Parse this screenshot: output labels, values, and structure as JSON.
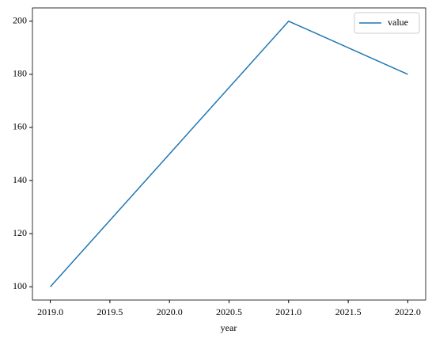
{
  "chart_data": {
    "type": "line",
    "x": [
      2019,
      2020,
      2021,
      2022
    ],
    "series": [
      {
        "name": "value",
        "color": "#1f77b4",
        "values": [
          100,
          150,
          200,
          180
        ]
      }
    ],
    "xlabel": "year",
    "xlim": [
      2018.85,
      2022.15
    ],
    "xticks": [
      {
        "value": 2019,
        "label": "2019.0"
      },
      {
        "value": 2019.5,
        "label": "2019.5"
      },
      {
        "value": 2020,
        "label": "2020.0"
      },
      {
        "value": 2020.5,
        "label": "2020.5"
      },
      {
        "value": 2021,
        "label": "2021.0"
      },
      {
        "value": 2021.5,
        "label": "2021.5"
      },
      {
        "value": 2022,
        "label": "2022.0"
      }
    ],
    "ylim": [
      95,
      205
    ],
    "yticks": [
      100,
      120,
      140,
      160,
      180,
      200
    ],
    "grid": false,
    "legend": "upper right"
  }
}
